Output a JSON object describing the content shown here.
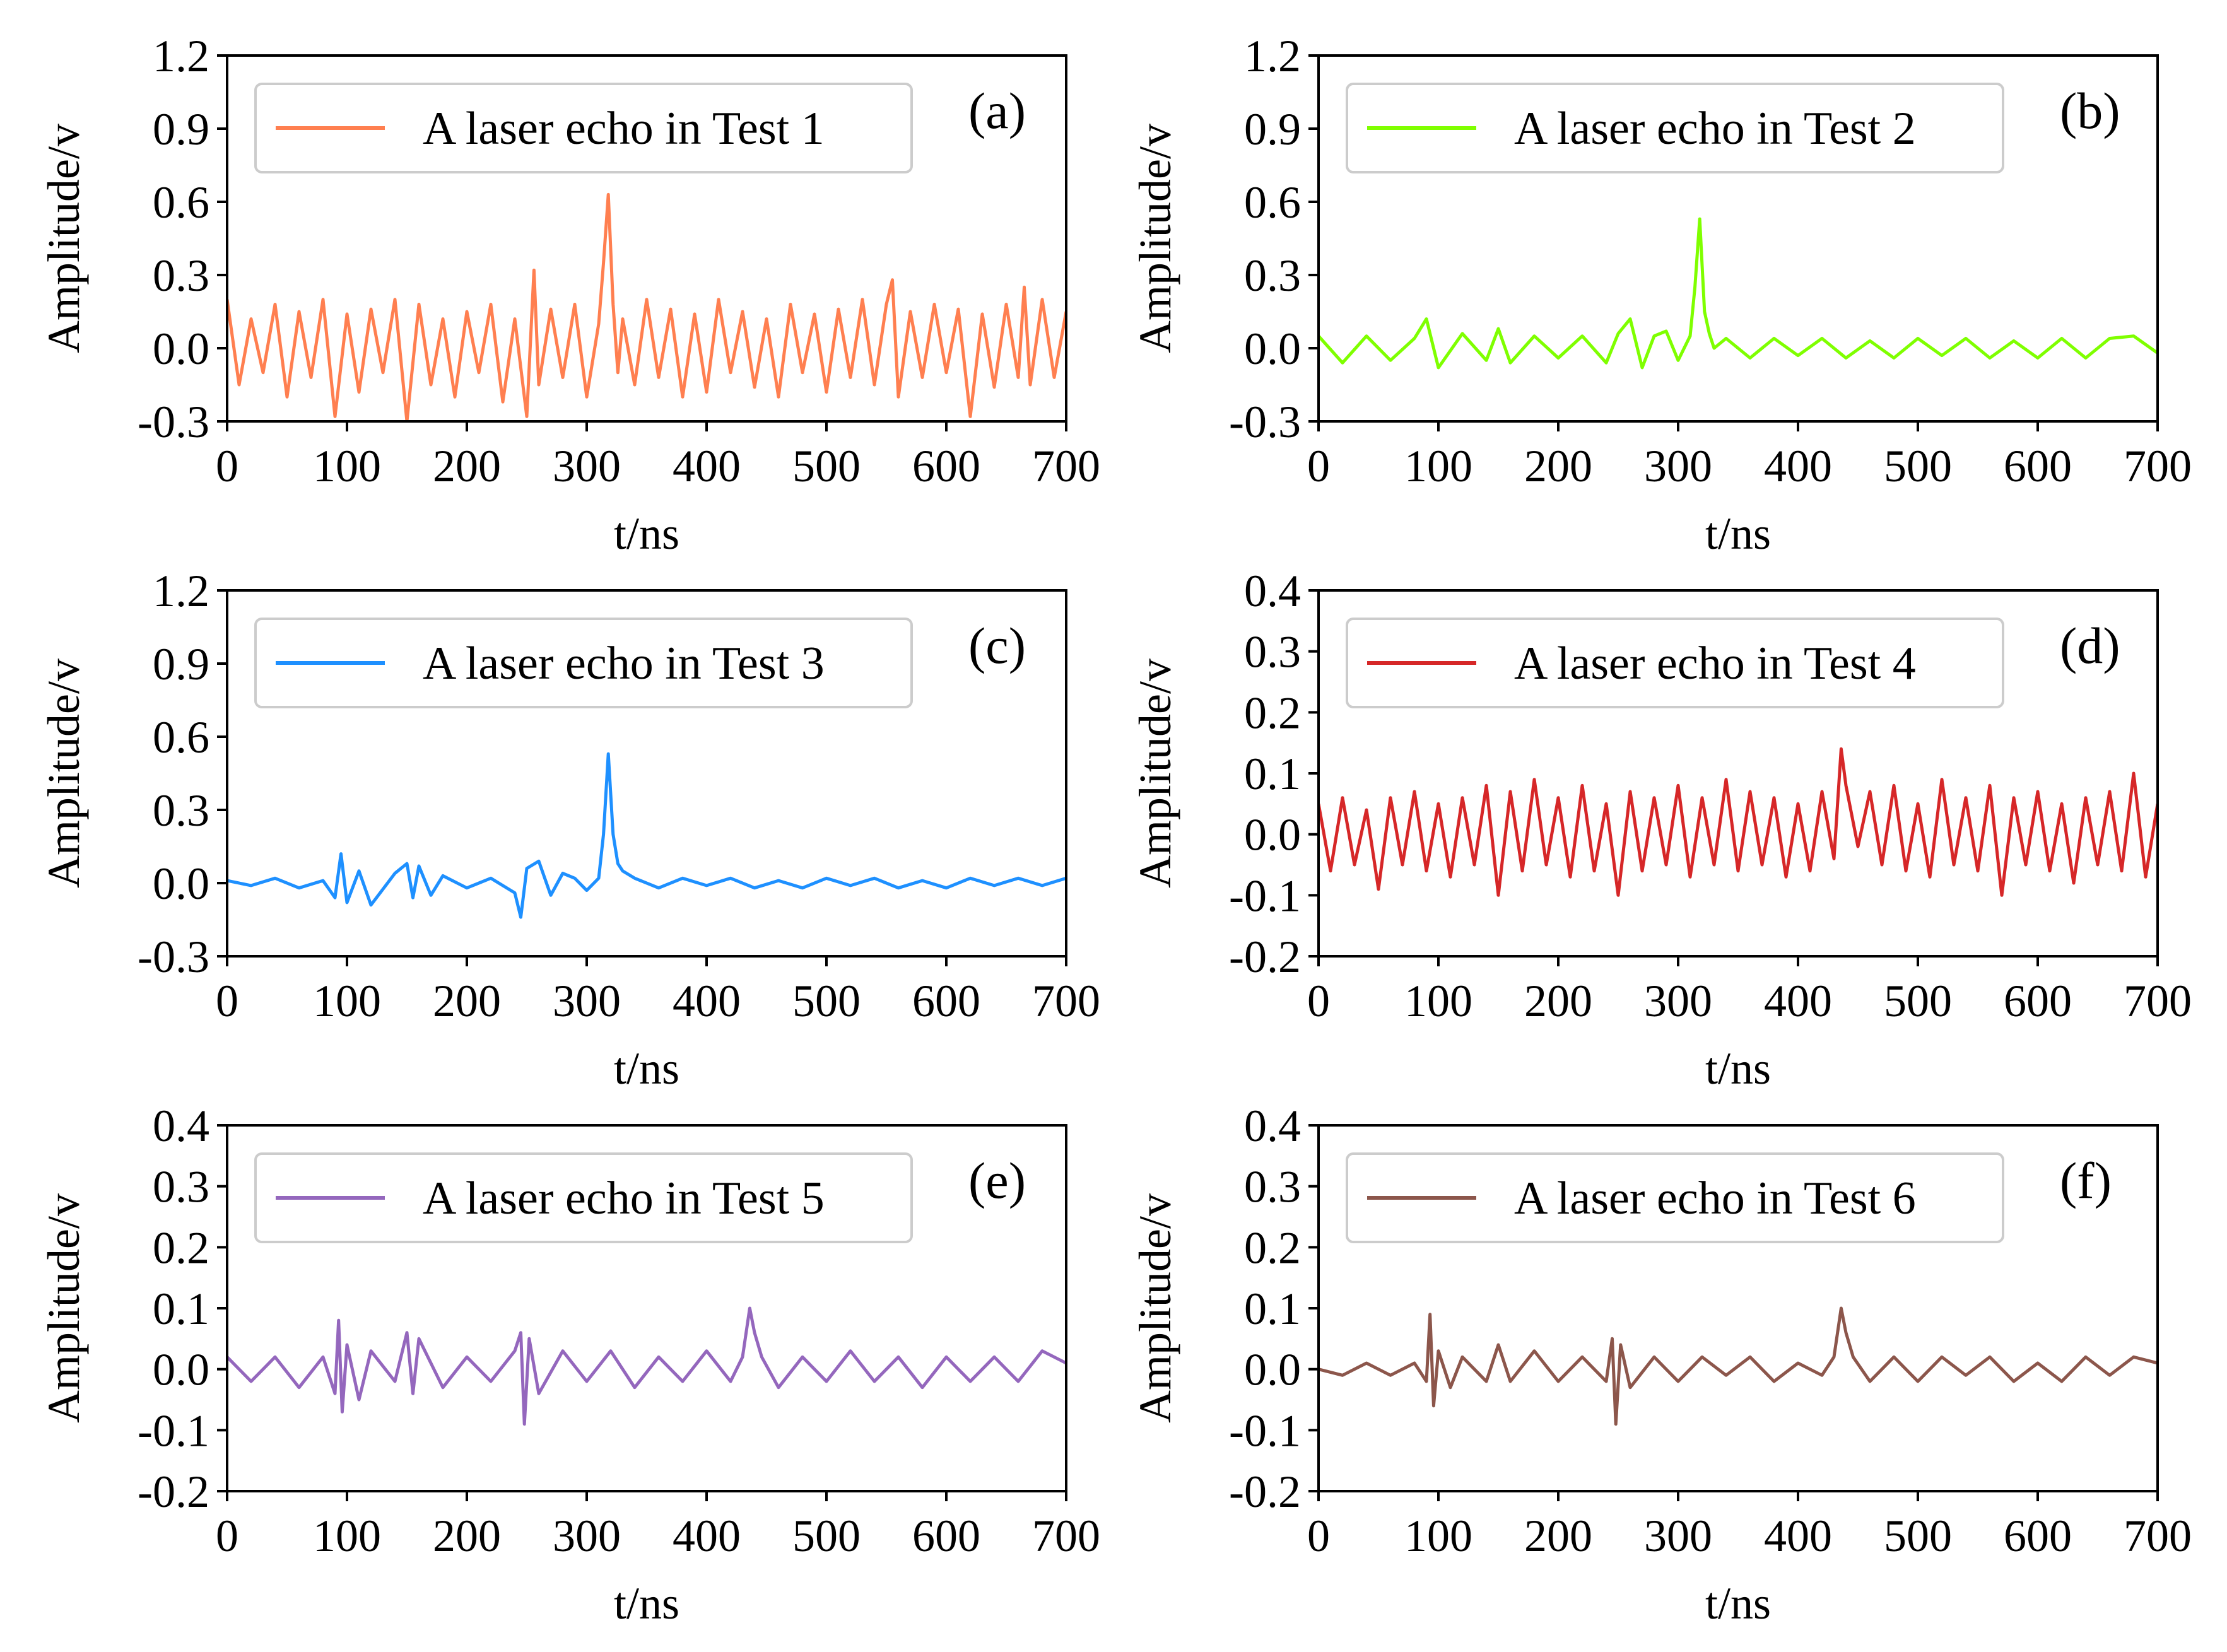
{
  "chart_data": [
    {
      "type": "line",
      "panel_label": "(a)",
      "xlabel": "t/ns",
      "ylabel": "Amplitude/v",
      "xlim": [
        0,
        700
      ],
      "ylim": [
        -0.3,
        1.2
      ],
      "xticks": [
        "0",
        "100",
        "200",
        "300",
        "400",
        "500",
        "600",
        "700"
      ],
      "yticks": [
        "-0.3",
        "0.0",
        "0.3",
        "0.6",
        "0.9",
        "1.2"
      ],
      "legend_position": "upper-left",
      "grid": false,
      "series": [
        {
          "name": "A laser echo in Test 1",
          "color": "#FF7F50",
          "x": [
            0,
            10,
            20,
            30,
            40,
            50,
            60,
            70,
            80,
            90,
            100,
            110,
            120,
            130,
            140,
            150,
            160,
            170,
            180,
            190,
            200,
            210,
            220,
            230,
            240,
            250,
            256,
            260,
            270,
            280,
            290,
            300,
            310,
            314,
            318,
            322,
            326,
            330,
            340,
            350,
            360,
            370,
            380,
            390,
            400,
            410,
            420,
            430,
            440,
            450,
            460,
            470,
            480,
            490,
            500,
            510,
            520,
            530,
            540,
            550,
            555,
            560,
            570,
            580,
            590,
            600,
            610,
            620,
            630,
            640,
            650,
            660,
            665,
            670,
            680,
            690,
            700
          ],
          "y": [
            0.2,
            -0.15,
            0.12,
            -0.1,
            0.18,
            -0.2,
            0.15,
            -0.12,
            0.2,
            -0.28,
            0.14,
            -0.18,
            0.16,
            -0.1,
            0.2,
            -0.3,
            0.18,
            -0.15,
            0.12,
            -0.2,
            0.15,
            -0.1,
            0.18,
            -0.22,
            0.12,
            -0.28,
            0.32,
            -0.15,
            0.16,
            -0.12,
            0.18,
            -0.2,
            0.1,
            0.35,
            0.63,
            0.18,
            -0.1,
            0.12,
            -0.15,
            0.2,
            -0.12,
            0.16,
            -0.2,
            0.14,
            -0.18,
            0.2,
            -0.1,
            0.15,
            -0.16,
            0.12,
            -0.2,
            0.18,
            -0.1,
            0.14,
            -0.18,
            0.16,
            -0.12,
            0.2,
            -0.15,
            0.18,
            0.28,
            -0.2,
            0.15,
            -0.12,
            0.18,
            -0.1,
            0.16,
            -0.28,
            0.14,
            -0.16,
            0.18,
            -0.12,
            0.25,
            -0.15,
            0.2,
            -0.12,
            0.15
          ]
        }
      ]
    },
    {
      "type": "line",
      "panel_label": "(b)",
      "xlabel": "t/ns",
      "ylabel": "Amplitude/v",
      "xlim": [
        0,
        700
      ],
      "ylim": [
        -0.3,
        1.2
      ],
      "xticks": [
        "0",
        "100",
        "200",
        "300",
        "400",
        "500",
        "600",
        "700"
      ],
      "yticks": [
        "-0.3",
        "0.0",
        "0.3",
        "0.6",
        "0.9",
        "1.2"
      ],
      "legend_position": "upper-left",
      "grid": false,
      "series": [
        {
          "name": "A laser echo in Test 2",
          "color": "#7FFF00",
          "x": [
            0,
            20,
            40,
            60,
            80,
            90,
            100,
            120,
            140,
            150,
            160,
            180,
            200,
            220,
            240,
            250,
            260,
            270,
            280,
            290,
            300,
            310,
            314,
            318,
            322,
            326,
            330,
            340,
            360,
            380,
            400,
            420,
            440,
            460,
            480,
            500,
            520,
            540,
            560,
            580,
            600,
            620,
            640,
            660,
            680,
            700
          ],
          "y": [
            0.05,
            -0.06,
            0.05,
            -0.05,
            0.04,
            0.12,
            -0.08,
            0.06,
            -0.05,
            0.08,
            -0.06,
            0.05,
            -0.04,
            0.05,
            -0.06,
            0.06,
            0.12,
            -0.08,
            0.05,
            0.07,
            -0.05,
            0.05,
            0.25,
            0.53,
            0.15,
            0.06,
            0.0,
            0.04,
            -0.04,
            0.04,
            -0.03,
            0.04,
            -0.04,
            0.03,
            -0.04,
            0.04,
            -0.03,
            0.04,
            -0.04,
            0.03,
            -0.04,
            0.04,
            -0.04,
            0.04,
            0.05,
            -0.02
          ]
        }
      ]
    },
    {
      "type": "line",
      "panel_label": "(c)",
      "xlabel": "t/ns",
      "ylabel": "Amplitude/v",
      "xlim": [
        0,
        700
      ],
      "ylim": [
        -0.3,
        1.2
      ],
      "xticks": [
        "0",
        "100",
        "200",
        "300",
        "400",
        "500",
        "600",
        "700"
      ],
      "yticks": [
        "-0.3",
        "0.0",
        "0.3",
        "0.6",
        "0.9",
        "1.2"
      ],
      "legend_position": "upper-left",
      "grid": false,
      "series": [
        {
          "name": "A laser echo in Test 3",
          "color": "#1E90FF",
          "x": [
            0,
            20,
            40,
            60,
            80,
            90,
            95,
            100,
            110,
            120,
            140,
            150,
            155,
            160,
            170,
            180,
            200,
            220,
            240,
            245,
            250,
            260,
            270,
            280,
            290,
            300,
            310,
            314,
            318,
            322,
            326,
            330,
            340,
            360,
            380,
            400,
            420,
            440,
            460,
            480,
            500,
            520,
            540,
            560,
            580,
            600,
            620,
            640,
            660,
            680,
            700
          ],
          "y": [
            0.01,
            -0.01,
            0.02,
            -0.02,
            0.01,
            -0.06,
            0.12,
            -0.08,
            0.05,
            -0.09,
            0.04,
            0.08,
            -0.06,
            0.07,
            -0.05,
            0.03,
            -0.02,
            0.02,
            -0.04,
            -0.14,
            0.06,
            0.09,
            -0.05,
            0.04,
            0.02,
            -0.03,
            0.02,
            0.2,
            0.53,
            0.2,
            0.08,
            0.05,
            0.02,
            -0.02,
            0.02,
            -0.01,
            0.02,
            -0.02,
            0.01,
            -0.02,
            0.02,
            -0.01,
            0.02,
            -0.02,
            0.01,
            -0.02,
            0.02,
            -0.01,
            0.02,
            -0.01,
            0.02
          ]
        }
      ]
    },
    {
      "type": "line",
      "panel_label": "(d)",
      "xlabel": "t/ns",
      "ylabel": "Amplitude/v",
      "xlim": [
        0,
        700
      ],
      "ylim": [
        -0.2,
        0.4
      ],
      "xticks": [
        "0",
        "100",
        "200",
        "300",
        "400",
        "500",
        "600",
        "700"
      ],
      "yticks": [
        "-0.2",
        "-0.1",
        "0.0",
        "0.1",
        "0.2",
        "0.3",
        "0.4"
      ],
      "legend_position": "upper-left",
      "grid": false,
      "series": [
        {
          "name": "A laser echo in Test 4",
          "color": "#D62728",
          "x": [
            0,
            10,
            20,
            30,
            40,
            50,
            60,
            70,
            80,
            90,
            100,
            110,
            120,
            130,
            140,
            150,
            160,
            170,
            180,
            190,
            200,
            210,
            220,
            230,
            240,
            250,
            260,
            270,
            280,
            290,
            300,
            310,
            320,
            330,
            340,
            350,
            360,
            370,
            380,
            390,
            400,
            410,
            420,
            430,
            436,
            440,
            450,
            460,
            470,
            480,
            490,
            500,
            510,
            520,
            530,
            540,
            550,
            560,
            570,
            580,
            590,
            600,
            610,
            620,
            630,
            640,
            650,
            660,
            670,
            680,
            690,
            700
          ],
          "y": [
            0.05,
            -0.06,
            0.06,
            -0.05,
            0.04,
            -0.09,
            0.06,
            -0.05,
            0.07,
            -0.06,
            0.05,
            -0.07,
            0.06,
            -0.05,
            0.08,
            -0.1,
            0.07,
            -0.06,
            0.09,
            -0.05,
            0.06,
            -0.07,
            0.08,
            -0.06,
            0.05,
            -0.1,
            0.07,
            -0.06,
            0.06,
            -0.05,
            0.08,
            -0.07,
            0.06,
            -0.05,
            0.09,
            -0.06,
            0.07,
            -0.05,
            0.06,
            -0.07,
            0.05,
            -0.06,
            0.07,
            -0.04,
            0.14,
            0.08,
            -0.02,
            0.07,
            -0.05,
            0.08,
            -0.06,
            0.05,
            -0.07,
            0.09,
            -0.05,
            0.06,
            -0.06,
            0.08,
            -0.1,
            0.06,
            -0.05,
            0.07,
            -0.06,
            0.05,
            -0.08,
            0.06,
            -0.05,
            0.07,
            -0.06,
            0.1,
            -0.07,
            0.05
          ]
        }
      ]
    },
    {
      "type": "line",
      "panel_label": "(e)",
      "xlabel": "t/ns",
      "ylabel": "Amplitude/v",
      "xlim": [
        0,
        700
      ],
      "ylim": [
        -0.2,
        0.4
      ],
      "xticks": [
        "0",
        "100",
        "200",
        "300",
        "400",
        "500",
        "600",
        "700"
      ],
      "yticks": [
        "-0.2",
        "-0.1",
        "0.0",
        "0.1",
        "0.2",
        "0.3",
        "0.4"
      ],
      "legend_position": "upper-left",
      "grid": false,
      "series": [
        {
          "name": "A laser echo in Test 5",
          "color": "#9467BD",
          "x": [
            0,
            20,
            40,
            60,
            80,
            90,
            93,
            96,
            100,
            110,
            120,
            140,
            150,
            155,
            160,
            180,
            200,
            220,
            240,
            245,
            248,
            252,
            260,
            280,
            300,
            320,
            340,
            360,
            380,
            400,
            420,
            430,
            436,
            440,
            446,
            460,
            480,
            500,
            520,
            540,
            560,
            580,
            600,
            620,
            640,
            660,
            680,
            700
          ],
          "y": [
            0.02,
            -0.02,
            0.02,
            -0.03,
            0.02,
            -0.04,
            0.08,
            -0.07,
            0.04,
            -0.05,
            0.03,
            -0.02,
            0.06,
            -0.04,
            0.05,
            -0.03,
            0.02,
            -0.02,
            0.03,
            0.06,
            -0.09,
            0.05,
            -0.04,
            0.03,
            -0.02,
            0.03,
            -0.03,
            0.02,
            -0.02,
            0.03,
            -0.02,
            0.02,
            0.1,
            0.06,
            0.02,
            -0.03,
            0.02,
            -0.02,
            0.03,
            -0.02,
            0.02,
            -0.03,
            0.02,
            -0.02,
            0.02,
            -0.02,
            0.03,
            0.01
          ]
        }
      ]
    },
    {
      "type": "line",
      "panel_label": "(f)",
      "xlabel": "t/ns",
      "ylabel": "Amplitude/v",
      "xlim": [
        0,
        700
      ],
      "ylim": [
        -0.2,
        0.4
      ],
      "xticks": [
        "0",
        "100",
        "200",
        "300",
        "400",
        "500",
        "600",
        "700"
      ],
      "yticks": [
        "-0.2",
        "-0.1",
        "0.0",
        "0.1",
        "0.2",
        "0.3",
        "0.4"
      ],
      "legend_position": "upper-left",
      "grid": false,
      "series": [
        {
          "name": "A laser echo in Test 6",
          "color": "#8C564B",
          "x": [
            0,
            20,
            40,
            60,
            80,
            90,
            93,
            96,
            100,
            110,
            120,
            140,
            150,
            160,
            180,
            200,
            220,
            240,
            245,
            248,
            252,
            260,
            280,
            300,
            320,
            340,
            360,
            380,
            400,
            420,
            430,
            436,
            440,
            446,
            460,
            480,
            500,
            520,
            540,
            560,
            580,
            600,
            620,
            640,
            660,
            680,
            700
          ],
          "y": [
            0.0,
            -0.01,
            0.01,
            -0.01,
            0.01,
            -0.02,
            0.09,
            -0.06,
            0.03,
            -0.03,
            0.02,
            -0.02,
            0.04,
            -0.02,
            0.03,
            -0.02,
            0.02,
            -0.02,
            0.05,
            -0.09,
            0.04,
            -0.03,
            0.02,
            -0.02,
            0.02,
            -0.01,
            0.02,
            -0.02,
            0.01,
            -0.01,
            0.02,
            0.1,
            0.06,
            0.02,
            -0.02,
            0.02,
            -0.02,
            0.02,
            -0.01,
            0.02,
            -0.02,
            0.01,
            -0.02,
            0.02,
            -0.01,
            0.02,
            0.01
          ]
        }
      ]
    }
  ]
}
